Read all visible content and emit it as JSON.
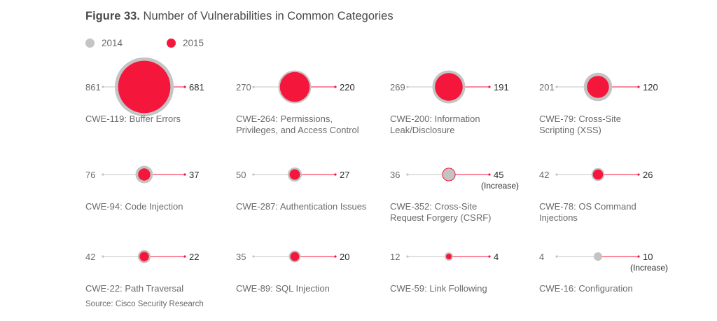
{
  "title": {
    "figure": "Figure 33.",
    "text": "Number of Vulnerabilities in Common Categories"
  },
  "legend": [
    {
      "label": "2014",
      "color": "#c4c4c4"
    },
    {
      "label": "2015",
      "color": "#f5163c"
    }
  ],
  "colors": {
    "y2014": "#c4c4c4",
    "y2015": "#f5163c",
    "text": "#6b6b6b",
    "value": "#2b2b2b"
  },
  "source": "Source: Cisco Security Research",
  "chart_data": {
    "type": "bubble",
    "series": [
      "2014",
      "2015"
    ],
    "items": [
      {
        "lines": [
          "CWE-119: Buffer Errors"
        ],
        "v2014": 861,
        "v2015": 681
      },
      {
        "lines": [
          "CWE-264: Permissions,",
          "Privileges, and Access Control"
        ],
        "v2014": 270,
        "v2015": 220
      },
      {
        "lines": [
          "CWE-200: Information",
          "Leak/Disclosure"
        ],
        "v2014": 269,
        "v2015": 191
      },
      {
        "lines": [
          "CWE-79: Cross-Site",
          "Scripting (XSS)"
        ],
        "v2014": 201,
        "v2015": 120
      },
      {
        "lines": [
          "CWE-94: Code Injection"
        ],
        "v2014": 76,
        "v2015": 37
      },
      {
        "lines": [
          "CWE-287: Authentication Issues"
        ],
        "v2014": 50,
        "v2015": 27
      },
      {
        "lines": [
          "CWE-352: Cross-Site",
          "Request Forgery (CSRF)"
        ],
        "v2014": 36,
        "v2015": 45,
        "note": "(Increase)"
      },
      {
        "lines": [
          "CWE-78: OS Command",
          "Injections"
        ],
        "v2014": 42,
        "v2015": 26
      },
      {
        "lines": [
          "CWE-22: Path Traversal"
        ],
        "v2014": 42,
        "v2015": 22
      },
      {
        "lines": [
          "CWE-89: SQL Injection"
        ],
        "v2014": 35,
        "v2015": 20
      },
      {
        "lines": [
          "CWE-59: Link Following"
        ],
        "v2014": 12,
        "v2015": 4
      },
      {
        "lines": [
          "CWE-16: Configuration"
        ],
        "v2014": 4,
        "v2015": 10,
        "note": "(Increase)"
      }
    ]
  }
}
